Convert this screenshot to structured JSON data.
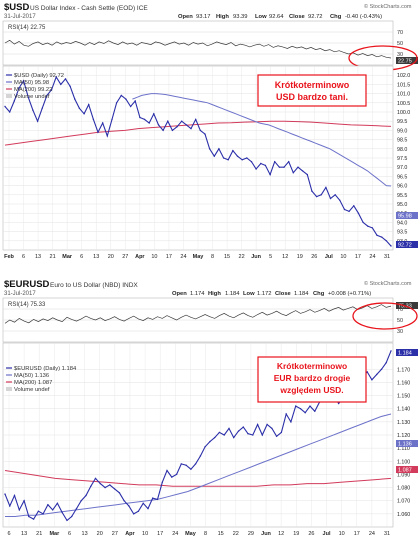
{
  "colors": {
    "price": "#2b2fa8",
    "ma50": "#6d72c9",
    "ma200": "#d23b5b",
    "rsi": "#3a3a3a",
    "grid": "#e3e3e3",
    "annotation": "#e8131b",
    "axis_text": "#222222"
  },
  "panels": [
    {
      "id": "usd",
      "symbol": "$USD",
      "name": "US Dollar Index - Cash Settle (EOD) ICE",
      "date": "31-Jul-2017",
      "logo": "© StockCharts.com",
      "quote": {
        "open_label": "Open",
        "open": "93.17",
        "high_label": "High",
        "high": "93.39",
        "low_label": "Low",
        "low": "92.64",
        "close_label": "Close",
        "close": "92.72",
        "chg_label": "Chg",
        "chg": "-0.40 (-0.43%)"
      },
      "rsi_label": "RSI(14) 22.75",
      "rsi_tag": "22.75",
      "rsi_ticks": [
        "70",
        "50",
        "30"
      ],
      "legend": [
        {
          "label": "$USD (Daily) 92.72",
          "color_key": "price",
          "kind": "line"
        },
        {
          "label": "MA(50) 95.98",
          "color_key": "ma50",
          "kind": "line"
        },
        {
          "label": "MA(200) 99.22",
          "color_key": "ma200",
          "kind": "line"
        },
        {
          "label": "Volume undef",
          "color_key": "grid",
          "kind": "box"
        }
      ],
      "price_tags": [
        {
          "label": "95.98",
          "key": "ma50"
        },
        {
          "label": "92.72",
          "key": "price"
        }
      ],
      "annotation_lines": [
        "Krótkoterminowo",
        "USD bardzo tani."
      ],
      "x_labels": [
        "Feb",
        "6",
        "13",
        "21",
        "Mar",
        "6",
        "13",
        "20",
        "27",
        "Apr",
        "10",
        "17",
        "24",
        "May",
        "8",
        "15",
        "22",
        "Jun",
        "5",
        "12",
        "19",
        "26",
        "Jul",
        "10",
        "17",
        "24",
        "31"
      ]
    },
    {
      "id": "eur",
      "symbol": "$EURUSD",
      "name": "Euro to US Dollar (NBD) INDX",
      "date": "31-Jul-2017",
      "logo": "© StockCharts.com",
      "quote": {
        "open_label": "Open",
        "open": "1.174",
        "high_label": "High",
        "high": "1.184",
        "low_label": "Low",
        "low": "1.172",
        "close_label": "Close",
        "close": "1.184",
        "chg_label": "Chg",
        "chg": "+0.008 (+0.71%)"
      },
      "rsi_label": "RSI(14) 75.33",
      "rsi_tag": "75.33",
      "rsi_ticks": [
        "70",
        "50",
        "30"
      ],
      "legend": [
        {
          "label": "$EURUSD (Daily) 1.184",
          "color_key": "price",
          "kind": "line"
        },
        {
          "label": "MA(50) 1.136",
          "color_key": "ma50",
          "kind": "line"
        },
        {
          "label": "MA(200) 1.087",
          "color_key": "ma200",
          "kind": "line"
        },
        {
          "label": "Volume undef",
          "color_key": "grid",
          "kind": "box"
        }
      ],
      "price_tags": [
        {
          "label": "1.184",
          "key": "price"
        },
        {
          "label": "1.136",
          "key": "ma50"
        },
        {
          "label": "1.087",
          "key": "ma200"
        }
      ],
      "annotation_lines": [
        "Krótkoterminowo",
        "EUR bardzo drogie",
        "względem USD."
      ],
      "x_labels": [
        "6",
        "13",
        "21",
        "Mar",
        "6",
        "13",
        "20",
        "27",
        "Apr",
        "10",
        "17",
        "24",
        "May",
        "8",
        "15",
        "22",
        "29",
        "Jun",
        "12",
        "19",
        "26",
        "Jul",
        "10",
        "17",
        "24",
        "31"
      ]
    }
  ],
  "chart_data": [
    {
      "type": "line",
      "title": "$USD US Dollar Index - Cash Settle (EOD) ICE",
      "ylim": [
        92.5,
        102.5
      ],
      "y_ticks": [
        93.0,
        93.5,
        94.0,
        94.5,
        95.0,
        95.5,
        96.0,
        96.5,
        97.0,
        97.5,
        98.0,
        98.5,
        99.0,
        99.5,
        100.0,
        100.5,
        101.0,
        101.5,
        102.0
      ],
      "y_tick_labels": [
        "93.0",
        "93.5",
        "94.0",
        "94.5",
        "95.0",
        "95.5",
        "96.0",
        "96.5",
        "97.0",
        "97.5",
        "98.0",
        "98.5",
        "99.0",
        "99.5",
        "100.0",
        "100.5",
        "101.0",
        "101.5",
        "102.0"
      ],
      "series": [
        {
          "name": "$USD (Daily) 92.72",
          "color_key": "price",
          "values": [
            100.3,
            100.0,
            100.6,
            101.3,
            101.7,
            100.8,
            100.1,
            99.5,
            100.2,
            100.9,
            101.2,
            101.9,
            101.5,
            101.8,
            101.4,
            100.7,
            100.2,
            99.9,
            100.4,
            99.6,
            98.9,
            99.4,
            98.7,
            99.6,
            100.5,
            100.9,
            100.7,
            100.3,
            100.6,
            99.7,
            99.6,
            99.4,
            99.9,
            99.3,
            99.0,
            99.5,
            99.0,
            99.2,
            99.5,
            99.3,
            99.1,
            99.6,
            99.0,
            98.8,
            98.0,
            97.6,
            98.0,
            97.5,
            97.4,
            97.9,
            97.6,
            97.4,
            97.5,
            97.3,
            96.9,
            97.2,
            97.1,
            96.6,
            97.3,
            97.0,
            97.0,
            97.3,
            96.7,
            97.0,
            96.8,
            96.6,
            95.7,
            95.4,
            95.5,
            95.9,
            95.3,
            95.5,
            95.2,
            94.7,
            94.6,
            94.9,
            94.5,
            94.0,
            93.8,
            93.7,
            93.3,
            93.2,
            93.0,
            92.72
          ]
        },
        {
          "name": "MA(50) 95.98",
          "color_key": "ma50",
          "values": [
            100.7,
            100.8,
            100.9,
            100.95,
            101.0,
            101.0,
            100.98,
            100.95,
            100.9,
            100.85,
            100.8,
            100.75,
            100.7,
            100.65,
            100.6,
            100.55,
            100.5,
            100.4,
            100.3,
            100.2,
            100.1,
            100.0,
            99.9,
            99.8,
            99.7,
            99.6,
            99.5,
            99.4,
            99.35,
            99.3,
            99.2,
            99.1,
            99.0,
            98.9,
            98.8,
            98.7,
            98.6,
            98.5,
            98.4,
            98.3,
            98.2,
            98.1,
            98.0,
            97.85,
            97.7,
            97.55,
            97.4,
            97.25,
            97.1,
            96.95,
            96.8,
            96.6,
            96.4,
            96.2,
            96.0,
            95.98
          ]
        },
        {
          "name": "MA(200) 99.22",
          "color_key": "ma200",
          "values": [
            98.2,
            98.3,
            98.4,
            98.5,
            98.6,
            98.7,
            98.8,
            98.9,
            98.95,
            99.0,
            99.1,
            99.15,
            99.2,
            99.25,
            99.3,
            99.35,
            99.4,
            99.42,
            99.45,
            99.47,
            99.5,
            99.5,
            99.48,
            99.45,
            99.4,
            99.35,
            99.3,
            99.28,
            99.25,
            99.22
          ]
        }
      ],
      "annotations": [
        "Krótkoterminowo",
        "USD bardzo tani."
      ]
    },
    {
      "type": "line",
      "title": "$EURUSD Euro to US Dollar (NBD) INDX",
      "ylim": [
        1.05,
        1.19
      ],
      "y_ticks": [
        1.06,
        1.07,
        1.08,
        1.09,
        1.1,
        1.11,
        1.12,
        1.13,
        1.14,
        1.15,
        1.16,
        1.17
      ],
      "y_tick_labels": [
        "1.060",
        "1.070",
        "1.080",
        "1.090",
        "1.100",
        "1.110",
        "1.120",
        "1.130",
        "1.140",
        "1.150",
        "1.160",
        "1.170"
      ],
      "series": [
        {
          "name": "$EURUSD (Daily) 1.184",
          "color_key": "price",
          "values": [
            1.075,
            1.066,
            1.074,
            1.063,
            1.07,
            1.058,
            1.056,
            1.062,
            1.06,
            1.067,
            1.063,
            1.068,
            1.061,
            1.055,
            1.058,
            1.064,
            1.07,
            1.074,
            1.081,
            1.087,
            1.083,
            1.08,
            1.082,
            1.079,
            1.076,
            1.07,
            1.066,
            1.06,
            1.062,
            1.068,
            1.064,
            1.072,
            1.071,
            1.084,
            1.093,
            1.088,
            1.09,
            1.098,
            1.097,
            1.094,
            1.098,
            1.104,
            1.111,
            1.115,
            1.118,
            1.122,
            1.12,
            1.125,
            1.118,
            1.123,
            1.126,
            1.121,
            1.12,
            1.128,
            1.12,
            1.128,
            1.125,
            1.119,
            1.122,
            1.136,
            1.13,
            1.142,
            1.14,
            1.137,
            1.142,
            1.138,
            1.145,
            1.146,
            1.152,
            1.15,
            1.144,
            1.148,
            1.158,
            1.164,
            1.166,
            1.164,
            1.168,
            1.162,
            1.166,
            1.17,
            1.175,
            1.184
          ]
        },
        {
          "name": "MA(50) 1.136",
          "color_key": "ma50",
          "values": [
            1.058,
            1.058,
            1.059,
            1.059,
            1.06,
            1.061,
            1.062,
            1.063,
            1.064,
            1.065,
            1.066,
            1.067,
            1.068,
            1.069,
            1.07,
            1.071,
            1.073,
            1.075,
            1.077,
            1.08,
            1.083,
            1.086,
            1.089,
            1.092,
            1.095,
            1.098,
            1.101,
            1.104,
            1.107,
            1.11,
            1.113,
            1.116,
            1.119,
            1.122,
            1.125,
            1.128,
            1.131,
            1.134,
            1.136
          ]
        },
        {
          "name": "MA(200) 1.087",
          "color_key": "ma200",
          "values": [
            1.093,
            1.091,
            1.089,
            1.087,
            1.086,
            1.085,
            1.084,
            1.083,
            1.082,
            1.082,
            1.081,
            1.081,
            1.081,
            1.081,
            1.081,
            1.081,
            1.082,
            1.082,
            1.083,
            1.083,
            1.084,
            1.085,
            1.086,
            1.087
          ]
        }
      ],
      "annotations": [
        "Krótkoterminowo",
        "EUR bardzo drogie",
        "względem USD."
      ]
    }
  ],
  "rsi_data": [
    {
      "values": [
        50,
        55,
        48,
        53,
        46,
        44,
        49,
        52,
        47,
        50,
        46,
        52,
        48,
        51,
        49,
        53,
        50,
        46,
        51,
        47,
        52,
        49,
        54,
        50,
        47,
        52,
        48,
        50,
        46,
        51,
        49,
        47,
        52,
        50,
        46,
        49,
        52,
        48,
        50,
        46,
        51,
        48,
        50,
        45,
        48,
        52,
        49,
        47,
        51,
        45,
        48,
        46,
        43,
        46,
        48,
        44,
        47,
        42,
        45,
        43,
        40,
        44,
        41,
        43,
        39,
        42,
        38,
        40,
        36,
        38,
        34,
        36,
        33,
        30,
        32,
        28,
        31,
        27,
        29,
        25,
        27,
        24,
        22.75
      ]
    },
    {
      "values": [
        44,
        50,
        46,
        53,
        48,
        45,
        51,
        47,
        52,
        49,
        54,
        50,
        47,
        55,
        51,
        48,
        52,
        57,
        53,
        50,
        54,
        49,
        52,
        56,
        51,
        48,
        53,
        57,
        52,
        49,
        54,
        51,
        56,
        53,
        58,
        54,
        50,
        55,
        59,
        55,
        52,
        56,
        60,
        56,
        53,
        58,
        62,
        57,
        54,
        59,
        63,
        58,
        55,
        60,
        64,
        59,
        62,
        66,
        61,
        58,
        63,
        67,
        62,
        65,
        69,
        64,
        67,
        71,
        66,
        70,
        73,
        68,
        71,
        74,
        69,
        72,
        76,
        71,
        74,
        78,
        73,
        75.33
      ]
    }
  ]
}
